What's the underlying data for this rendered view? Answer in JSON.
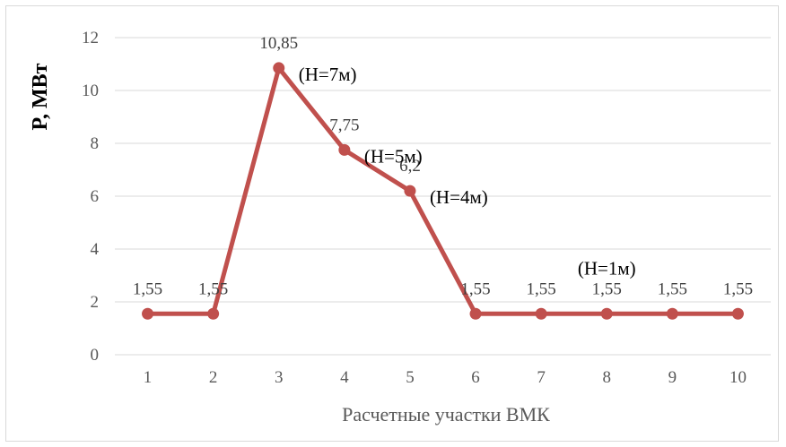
{
  "chart_data": {
    "type": "line",
    "x": [
      "1",
      "2",
      "3",
      "4",
      "5",
      "6",
      "7",
      "8",
      "9",
      "10"
    ],
    "series": [
      {
        "values": [
          1.55,
          1.55,
          10.85,
          7.75,
          6.2,
          1.55,
          1.55,
          1.55,
          1.55,
          1.55
        ],
        "data_labels": [
          "1,55",
          "1,55",
          "10,85",
          "7,75",
          "6,2",
          "1,55",
          "1,55",
          "1,55",
          "1,55",
          "1,55"
        ],
        "color": "#c0504d"
      }
    ],
    "xlabel": "Расчетные участки ВМК",
    "ylabel": "P, МВт",
    "ylim": [
      0,
      12
    ],
    "yticks": [
      "0",
      "2",
      "4",
      "6",
      "8",
      "10",
      "12"
    ],
    "grid": "horizontal",
    "gridline_color": "#d9d9d9",
    "annotations": [
      {
        "x_index": 2,
        "text": "(H=7м)"
      },
      {
        "x_index": 3,
        "text": "(H=5м)"
      },
      {
        "x_index": 4,
        "text": "(H=4м)"
      },
      {
        "x_index": 7,
        "text": "(H=1м)"
      }
    ]
  }
}
